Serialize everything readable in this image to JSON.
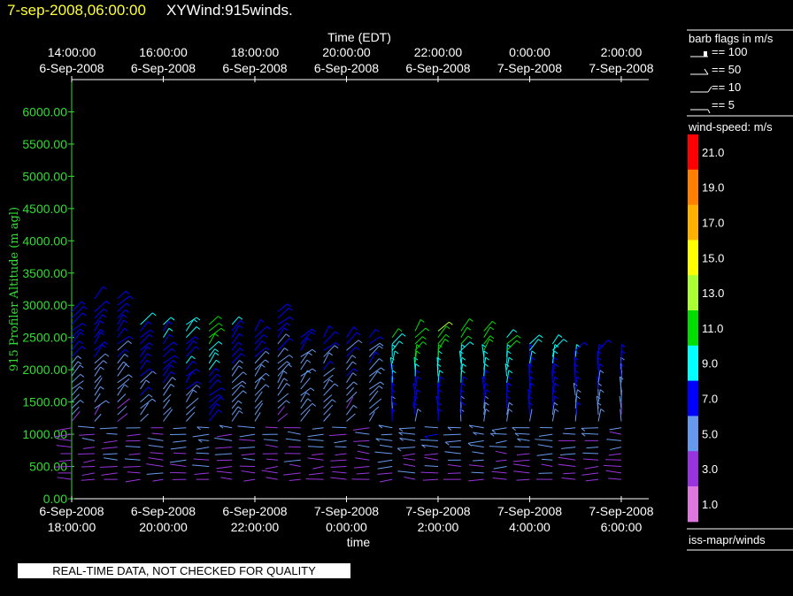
{
  "header": {
    "date_time": "7-sep-2008,06:00:00",
    "title": "XYWind:915winds."
  },
  "footer_note": "REAL-TIME DATA, NOT CHECKED FOR QUALITY",
  "legend": {
    "barb_title": "barb flags in m/s",
    "barb_entries": [
      "== 100",
      "== 50",
      "== 10",
      "== 5"
    ],
    "speed_title": "wind-speed: m/s",
    "speed_colors": [
      "#ff0000",
      "#ff7f00",
      "#ffb000",
      "#ffff00",
      "#aaff33",
      "#00dd00",
      "#00ffff",
      "#0000ff",
      "#6699ee",
      "#9933dd",
      "#dd77dd"
    ],
    "speed_labels": [
      "21.0",
      "19.0",
      "17.0",
      "15.0",
      "13.0",
      "11.0",
      "9.0",
      "7.0",
      "5.0",
      "3.0",
      "1.0"
    ],
    "source": "iss-mapr/winds"
  },
  "chart_data": {
    "type": "scatter",
    "title": "",
    "top_axis": {
      "label": "Time (EDT)",
      "ticks": [
        [
          "14:00:00",
          "6-Sep-2008"
        ],
        [
          "16:00:00",
          "6-Sep-2008"
        ],
        [
          "18:00:00",
          "6-Sep-2008"
        ],
        [
          "20:00:00",
          "6-Sep-2008"
        ],
        [
          "22:00:00",
          "6-Sep-2008"
        ],
        [
          "0:00:00",
          "7-Sep-2008"
        ],
        [
          "2:00:00",
          "7-Sep-2008"
        ]
      ]
    },
    "bottom_axis": {
      "label": "time",
      "ticks": [
        [
          "6-Sep-2008",
          "18:00:00"
        ],
        [
          "6-Sep-2008",
          "20:00:00"
        ],
        [
          "6-Sep-2008",
          "22:00:00"
        ],
        [
          "7-Sep-2008",
          "0:00:00"
        ],
        [
          "7-Sep-2008",
          "2:00:00"
        ],
        [
          "7-Sep-2008",
          "4:00:00"
        ],
        [
          "7-Sep-2008",
          "6:00:00"
        ]
      ],
      "range_hours": [
        0,
        12.6
      ]
    },
    "y_axis": {
      "label": "915 Profiler Altitude (m agl)",
      "ticks": [
        "0.00",
        "500.00",
        "1000.00",
        "1500.00",
        "2000.00",
        "2500.00",
        "3000.00",
        "3500.00",
        "4000.00",
        "4500.00",
        "5000.00",
        "5500.00",
        "6000.00"
      ],
      "range": [
        0,
        6500
      ],
      "color": "#33dd33"
    },
    "wind_profile": [
      {
        "time": "6-Sep-2008 18:00",
        "max_alt_m": 3250,
        "low_speed_m_s": 3,
        "high_speed_m_s": 7
      },
      {
        "time": "6-Sep-2008 18:30",
        "max_alt_m": 3100,
        "low_speed_m_s": 3,
        "high_speed_m_s": 7
      },
      {
        "time": "6-Sep-2008 19:00",
        "max_alt_m": 3350,
        "low_speed_m_s": 3,
        "high_speed_m_s": 7
      },
      {
        "time": "6-Sep-2008 19:30",
        "max_alt_m": 2700,
        "low_speed_m_s": 3,
        "high_speed_m_s": 8
      },
      {
        "time": "6-Sep-2008 20:00",
        "max_alt_m": 2700,
        "low_speed_m_s": 3,
        "high_speed_m_s": 8
      },
      {
        "time": "6-Sep-2008 20:30",
        "max_alt_m": 2700,
        "low_speed_m_s": 3,
        "high_speed_m_s": 9
      },
      {
        "time": "6-Sep-2008 21:00",
        "max_alt_m": 2750,
        "low_speed_m_s": 3,
        "high_speed_m_s": 11
      },
      {
        "time": "6-Sep-2008 21:30",
        "max_alt_m": 2700,
        "low_speed_m_s": 3,
        "high_speed_m_s": 8
      },
      {
        "time": "6-Sep-2008 22:00",
        "max_alt_m": 2650,
        "low_speed_m_s": 3,
        "high_speed_m_s": 7
      },
      {
        "time": "6-Sep-2008 22:30",
        "max_alt_m": 3000,
        "low_speed_m_s": 3,
        "high_speed_m_s": 7
      },
      {
        "time": "6-Sep-2008 23:00",
        "max_alt_m": 2550,
        "low_speed_m_s": 3,
        "high_speed_m_s": 7
      },
      {
        "time": "6-Sep-2008 23:30",
        "max_alt_m": 2500,
        "low_speed_m_s": 3,
        "high_speed_m_s": 7
      },
      {
        "time": "7-Sep-2008 0:00",
        "max_alt_m": 2550,
        "low_speed_m_s": 3,
        "high_speed_m_s": 7
      },
      {
        "time": "7-Sep-2008 0:30",
        "max_alt_m": 2500,
        "low_speed_m_s": 3,
        "high_speed_m_s": 7
      },
      {
        "time": "7-Sep-2008 1:00",
        "max_alt_m": 2550,
        "low_speed_m_s": 3,
        "high_speed_m_s": 11
      },
      {
        "time": "7-Sep-2008 1:30",
        "max_alt_m": 2600,
        "low_speed_m_s": 3,
        "high_speed_m_s": 12
      },
      {
        "time": "7-Sep-2008 2:00",
        "max_alt_m": 2650,
        "low_speed_m_s": 3,
        "high_speed_m_s": 12
      },
      {
        "time": "7-Sep-2008 2:30",
        "max_alt_m": 2600,
        "low_speed_m_s": 3,
        "high_speed_m_s": 11
      },
      {
        "time": "7-Sep-2008 3:00",
        "max_alt_m": 2600,
        "low_speed_m_s": 3,
        "high_speed_m_s": 11
      },
      {
        "time": "7-Sep-2008 3:30",
        "max_alt_m": 2500,
        "low_speed_m_s": 3,
        "high_speed_m_s": 11
      },
      {
        "time": "7-Sep-2008 4:00",
        "max_alt_m": 2400,
        "low_speed_m_s": 3,
        "high_speed_m_s": 10
      },
      {
        "time": "7-Sep-2008 4:30",
        "max_alt_m": 2400,
        "low_speed_m_s": 3,
        "high_speed_m_s": 10
      },
      {
        "time": "7-Sep-2008 5:00",
        "max_alt_m": 2300,
        "low_speed_m_s": 3,
        "high_speed_m_s": 9
      },
      {
        "time": "7-Sep-2008 5:30",
        "max_alt_m": 2300,
        "low_speed_m_s": 3,
        "high_speed_m_s": 9
      },
      {
        "time": "7-Sep-2008 6:00",
        "max_alt_m": 2200,
        "low_speed_m_s": 3,
        "high_speed_m_s": 7
      }
    ]
  }
}
